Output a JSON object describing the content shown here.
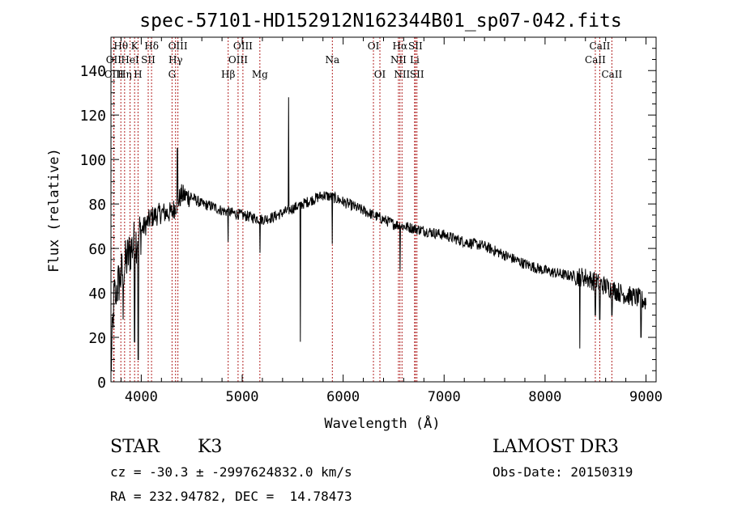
{
  "chart_data": {
    "type": "line",
    "title": "spec-57101-HD152912N162344B01_sp07-042.fits",
    "xlabel": "Wavelength (Å)",
    "ylabel": "Flux (relative)",
    "xlim": [
      3700,
      9100
    ],
    "ylim": [
      0,
      155
    ],
    "x_ticks": [
      4000,
      5000,
      6000,
      7000,
      8000,
      9000
    ],
    "x_tick_labels": [
      "4000",
      "5000",
      "6000",
      "7000",
      "8000",
      "9000"
    ],
    "y_ticks": [
      0,
      20,
      40,
      60,
      80,
      100,
      120,
      140
    ],
    "y_tick_labels": [
      "0",
      "20",
      "40",
      "60",
      "80",
      "100",
      "120",
      "140"
    ],
    "grid": false,
    "series_color": "#000000",
    "line_marker_color": "#b22222",
    "spectrum_anchors": {
      "x": [
        3700,
        3730,
        3800,
        3900,
        4000,
        4100,
        4200,
        4300,
        4400,
        4500,
        4600,
        4700,
        4800,
        4900,
        5000,
        5100,
        5200,
        5300,
        5400,
        5500,
        5600,
        5700,
        5800,
        5900,
        6000,
        6100,
        6200,
        6300,
        6400,
        6500,
        6600,
        6700,
        6800,
        6900,
        7000,
        7200,
        7400,
        7600,
        7800,
        8000,
        8200,
        8400,
        8500,
        8600,
        8700,
        8800,
        8900,
        9000
      ],
      "y": [
        5,
        38,
        48,
        60,
        68,
        74,
        76,
        76,
        84,
        83,
        80,
        79,
        77,
        76,
        75,
        74,
        73,
        74,
        76,
        78,
        80,
        82,
        84,
        83,
        81,
        79,
        77,
        75,
        73,
        71,
        70,
        69,
        68,
        67,
        66,
        63,
        61,
        57,
        53,
        50,
        48,
        47,
        45,
        43,
        41,
        39,
        38,
        36
      ]
    },
    "spectrum_features": [
      {
        "x": 5461,
        "y": 128
      },
      {
        "x": 4358,
        "y": 105
      },
      {
        "x": 5577,
        "y": 18
      },
      {
        "x": 5893,
        "y": 62
      },
      {
        "x": 6563,
        "y": 50
      },
      {
        "x": 8345,
        "y": 15
      },
      {
        "x": 8498,
        "y": 30
      },
      {
        "x": 8542,
        "y": 28
      },
      {
        "x": 8662,
        "y": 30
      },
      {
        "x": 3970,
        "y": 10
      },
      {
        "x": 3934,
        "y": 18
      },
      {
        "x": 5175,
        "y": 58
      },
      {
        "x": 4861,
        "y": 63
      },
      {
        "x": 3750,
        "y": 35
      },
      {
        "x": 3820,
        "y": 28
      },
      {
        "x": 8950,
        "y": 20
      }
    ],
    "line_markers": [
      {
        "label": "Hθ",
        "x": 3798,
        "row": 0
      },
      {
        "label": "OII",
        "x": 3727,
        "row": 1
      },
      {
        "label": "OIII",
        "x": 3730,
        "row": 2
      },
      {
        "label": "K",
        "x": 3934,
        "row": 0
      },
      {
        "label": "HeI",
        "x": 3889,
        "row": 1
      },
      {
        "label": "Hη",
        "x": 3835,
        "row": 2
      },
      {
        "label": "Hδ",
        "x": 4102,
        "row": 0
      },
      {
        "label": "SII",
        "x": 4069,
        "row": 1
      },
      {
        "label": "H",
        "x": 3968,
        "row": 2
      },
      {
        "label": "OIII",
        "x": 4363,
        "row": 0
      },
      {
        "label": "Hγ",
        "x": 4340,
        "row": 1
      },
      {
        "label": "G",
        "x": 4305,
        "row": 2
      },
      {
        "label": "OIII",
        "x": 5007,
        "row": 0
      },
      {
        "label": "OIII",
        "x": 4959,
        "row": 1
      },
      {
        "label": "Hβ",
        "x": 4861,
        "row": 2
      },
      {
        "label": "Mg",
        "x": 5175,
        "row": 2
      },
      {
        "label": "Na",
        "x": 5893,
        "row": 1
      },
      {
        "label": "OI",
        "x": 6300,
        "row": 0
      },
      {
        "label": "OI",
        "x": 6364,
        "row": 2
      },
      {
        "label": "Hα",
        "x": 6563,
        "row": 0
      },
      {
        "label": "SII",
        "x": 6716,
        "row": 0
      },
      {
        "label": "NII",
        "x": 6548,
        "row": 1
      },
      {
        "label": "Li",
        "x": 6708,
        "row": 1
      },
      {
        "label": "NII",
        "x": 6583,
        "row": 2
      },
      {
        "label": "SII",
        "x": 6731,
        "row": 2
      },
      {
        "label": "CaII",
        "x": 8542,
        "row": 0
      },
      {
        "label": "CaII",
        "x": 8498,
        "row": 1
      },
      {
        "label": "CaII",
        "x": 8662,
        "row": 2
      }
    ]
  },
  "info": {
    "object_class": "STAR",
    "subclass": "K3",
    "survey": "LAMOST DR3",
    "cz_line": "cz = -30.3 ± -2997624832.0 km/s",
    "obs_date_line": "Obs-Date: 20150319",
    "radec_line": "RA = 232.94782, DEC =  14.78473"
  }
}
